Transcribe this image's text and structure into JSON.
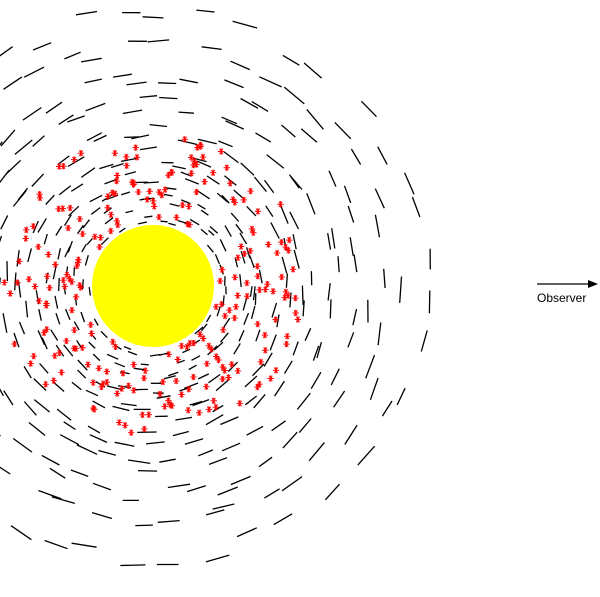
{
  "figure": {
    "observer_label": "Observer",
    "star_color": "#ffff00",
    "dash_color": "#000000",
    "star_marker_color": "#ff0000",
    "star_marker_glyph": "*"
  }
}
